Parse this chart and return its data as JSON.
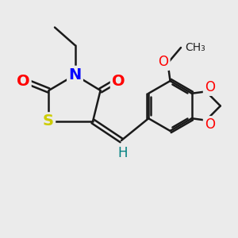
{
  "background_color": "#ebebeb",
  "bond_color": "#1a1a1a",
  "bond_width": 1.8,
  "atom_colors": {
    "N": "#0000ff",
    "O": "#ff0000",
    "S": "#cccc00",
    "H": "#008080"
  },
  "font_size_large": 14,
  "font_size_med": 12,
  "font_size_small": 10,
  "figsize": [
    3.0,
    3.0
  ],
  "dpi": 100
}
